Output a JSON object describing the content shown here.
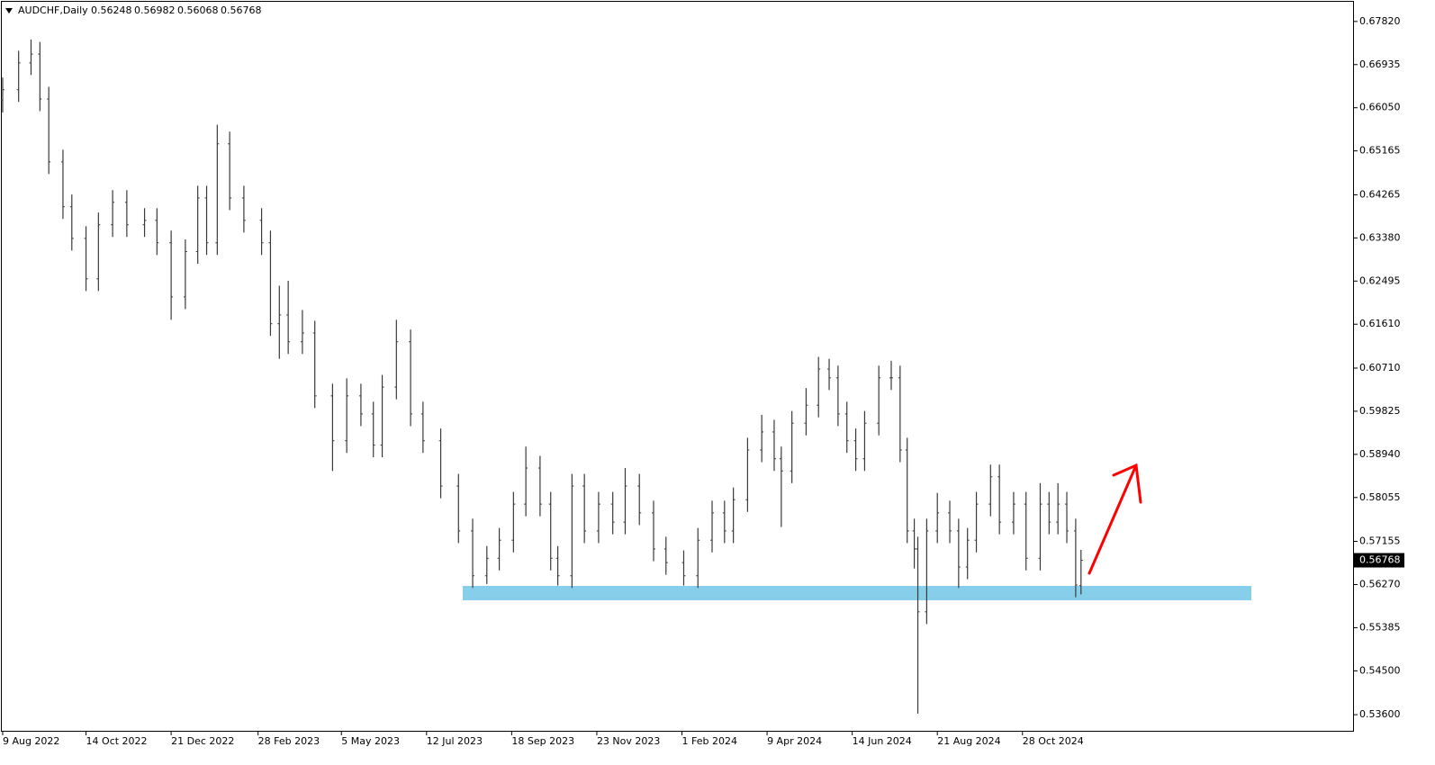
{
  "chart_data": {
    "type": "ohlc",
    "symbol": "AUDCHF,Daily",
    "color": "#3a3a3a",
    "price_tag_color": "#000000",
    "x": [
      0,
      9,
      16,
      21,
      26,
      34,
      39,
      47,
      54,
      62,
      70,
      80,
      87,
      95,
      103,
      110,
      115,
      121,
      128,
      136,
      146,
      151,
      156,
      161,
      169,
      176,
      186,
      194,
      202,
      209,
      214,
      222,
      230,
      237,
      247,
      257,
      265,
      273,
      280,
      288,
      295,
      303,
      309,
      313,
      321,
      328,
      336,
      344,
      351,
      359,
      367,
      374,
      384,
      392,
      400,
      407,
      412,
      420,
      428,
      435,
      439,
      445,
      453,
      460,
      466,
      471,
      476,
      481,
      486,
      494,
      501,
      506,
      510,
      514,
      516,
      521,
      527,
      534,
      539,
      544,
      549,
      557,
      562,
      570,
      577,
      585,
      590,
      595,
      600,
      605,
      608
    ],
    "open": [
      0.662,
      0.6642,
      0.6697,
      0.6715,
      0.6623,
      0.6494,
      0.6402,
      0.6337,
      0.6254,
      0.6365,
      0.6411,
      0.6365,
      0.6374,
      0.6328,
      0.6217,
      0.631,
      0.642,
      0.6328,
      0.6531,
      0.642,
      0.6374,
      0.6328,
      0.6162,
      0.618,
      0.6125,
      0.6143,
      0.6014,
      0.5922,
      0.6014,
      0.5977,
      0.5913,
      0.6032,
      0.6125,
      0.5977,
      0.5922,
      0.5829,
      0.5737,
      0.5645,
      0.5681,
      0.5718,
      0.5792,
      0.5866,
      0.5792,
      0.5681,
      0.5645,
      0.5829,
      0.5737,
      0.5792,
      0.5755,
      0.5829,
      0.5774,
      0.57,
      0.5672,
      0.5645,
      0.5718,
      0.5774,
      0.5737,
      0.5801,
      0.5903,
      0.594,
      0.5885,
      0.586,
      0.5958,
      0.5995,
      0.6069,
      0.6051,
      0.5977,
      0.5922,
      0.5885,
      0.5958,
      0.6051,
      0.6051,
      0.5903,
      0.5737,
      0.57,
      0.5571,
      0.5737,
      0.5774,
      0.5737,
      0.5663,
      0.5718,
      0.5792,
      0.5848,
      0.5755,
      0.5792,
      0.5681,
      0.5792,
      0.5755,
      0.5792,
      0.5737,
      0.56248
    ],
    "high": [
      0.6667,
      0.6722,
      0.6745,
      0.674,
      0.6648,
      0.6519,
      0.6427,
      0.6362,
      0.639,
      0.6436,
      0.6436,
      0.6399,
      0.6399,
      0.6353,
      0.6335,
      0.6445,
      0.6445,
      0.657,
      0.6556,
      0.6445,
      0.6399,
      0.6353,
      0.624,
      0.625,
      0.619,
      0.6168,
      0.6039,
      0.605,
      0.6039,
      0.6002,
      0.6057,
      0.617,
      0.615,
      0.6002,
      0.5947,
      0.5854,
      0.5762,
      0.5706,
      0.5743,
      0.5817,
      0.591,
      0.5891,
      0.5817,
      0.5706,
      0.5854,
      0.5854,
      0.5817,
      0.5817,
      0.5866,
      0.5854,
      0.5799,
      0.5725,
      0.5697,
      0.5743,
      0.5799,
      0.5799,
      0.5826,
      0.5928,
      0.5975,
      0.5965,
      0.591,
      0.5983,
      0.603,
      0.6094,
      0.609,
      0.6076,
      0.6002,
      0.5947,
      0.5983,
      0.6076,
      0.6086,
      0.6076,
      0.5928,
      0.5762,
      0.5725,
      0.5762,
      0.5815,
      0.5799,
      0.5762,
      0.5743,
      0.5817,
      0.5873,
      0.5873,
      0.5817,
      0.5817,
      0.5835,
      0.5817,
      0.5835,
      0.5817,
      0.5762,
      0.56982
    ],
    "low": [
      0.6595,
      0.6617,
      0.6672,
      0.6598,
      0.6469,
      0.6377,
      0.6312,
      0.6229,
      0.6229,
      0.634,
      0.634,
      0.634,
      0.6303,
      0.617,
      0.6192,
      0.6285,
      0.6303,
      0.6303,
      0.6395,
      0.6349,
      0.6303,
      0.6137,
      0.609,
      0.61,
      0.61,
      0.5989,
      0.586,
      0.5897,
      0.5952,
      0.5888,
      0.5888,
      0.6007,
      0.5952,
      0.5897,
      0.5804,
      0.5712,
      0.562,
      0.5628,
      0.5656,
      0.5693,
      0.5767,
      0.5767,
      0.5656,
      0.5625,
      0.562,
      0.5712,
      0.5712,
      0.573,
      0.573,
      0.5749,
      0.5675,
      0.5647,
      0.5625,
      0.562,
      0.5693,
      0.5712,
      0.5712,
      0.5776,
      0.5878,
      0.586,
      0.5745,
      0.5835,
      0.5933,
      0.597,
      0.6026,
      0.5952,
      0.5897,
      0.586,
      0.586,
      0.5933,
      0.6026,
      0.5878,
      0.5712,
      0.566,
      0.5362,
      0.5546,
      0.5712,
      0.5712,
      0.562,
      0.5638,
      0.5693,
      0.5767,
      0.573,
      0.573,
      0.5656,
      0.5656,
      0.573,
      0.573,
      0.5712,
      0.5601,
      0.56068
    ],
    "close": [
      0.6642,
      0.6697,
      0.6715,
      0.6623,
      0.6494,
      0.6402,
      0.6337,
      0.6254,
      0.6365,
      0.6411,
      0.6365,
      0.6374,
      0.6328,
      0.6217,
      0.631,
      0.642,
      0.6328,
      0.6531,
      0.642,
      0.6374,
      0.6328,
      0.6162,
      0.618,
      0.6125,
      0.6143,
      0.6014,
      0.5922,
      0.6014,
      0.5977,
      0.5913,
      0.6032,
      0.6125,
      0.5977,
      0.5922,
      0.5829,
      0.5737,
      0.5645,
      0.5681,
      0.5718,
      0.5792,
      0.5866,
      0.5792,
      0.5681,
      0.5645,
      0.5829,
      0.5737,
      0.5792,
      0.5755,
      0.5829,
      0.5774,
      0.57,
      0.5672,
      0.5645,
      0.5718,
      0.5774,
      0.5737,
      0.5801,
      0.5903,
      0.594,
      0.5885,
      0.586,
      0.5958,
      0.5995,
      0.6069,
      0.6051,
      0.5977,
      0.5922,
      0.5885,
      0.5958,
      0.6051,
      0.6051,
      0.5903,
      0.5737,
      0.57,
      0.5571,
      0.5737,
      0.5774,
      0.5737,
      0.5663,
      0.5718,
      0.5792,
      0.5848,
      0.5755,
      0.5792,
      0.5681,
      0.5792,
      0.5755,
      0.5792,
      0.5737,
      0.5626,
      0.56768
    ],
    "xlim": [
      -1.5,
      761.4
    ],
    "xticks": [
      {
        "value": 0,
        "label": "9 Aug 2022"
      },
      {
        "value": 47,
        "label": "14 Oct 2022"
      },
      {
        "value": 95,
        "label": "21 Dec 2022"
      },
      {
        "value": 144,
        "label": "28 Feb 2023"
      },
      {
        "value": 191,
        "label": "5 May 2023"
      },
      {
        "value": 239,
        "label": "12 Jul 2023"
      },
      {
        "value": 287,
        "label": "18 Sep 2023"
      },
      {
        "value": 335,
        "label": "23 Nov 2023"
      },
      {
        "value": 383,
        "label": "1 Feb 2024"
      },
      {
        "value": 431,
        "label": "9 Apr 2024"
      },
      {
        "value": 479,
        "label": "14 Jun 2024"
      },
      {
        "value": 527,
        "label": "21 Aug 2024"
      },
      {
        "value": 575,
        "label": "28 Oct 2024"
      }
    ],
    "ylim": [
      0.5327,
      0.6826
    ],
    "yticks": [
      {
        "value": 0.6782,
        "label": "0.67820"
      },
      0.66935,
      {
        "value": 0.6605,
        "label": "0.66050"
      },
      0.65165,
      0.64265,
      {
        "value": 0.6338,
        "label": "0.63380"
      },
      0.62495,
      {
        "value": 0.6161,
        "label": "0.61610"
      },
      {
        "value": 0.6071,
        "label": "0.60710"
      },
      0.59825,
      {
        "value": 0.5894,
        "label": "0.58940"
      },
      0.58055,
      0.57155,
      {
        "value": 0.5627,
        "label": "0.56270"
      },
      0.55385,
      {
        "value": 0.545,
        "label": "0.54500"
      },
      {
        "value": 0.536,
        "label": "0.53600"
      }
    ]
  }
}
